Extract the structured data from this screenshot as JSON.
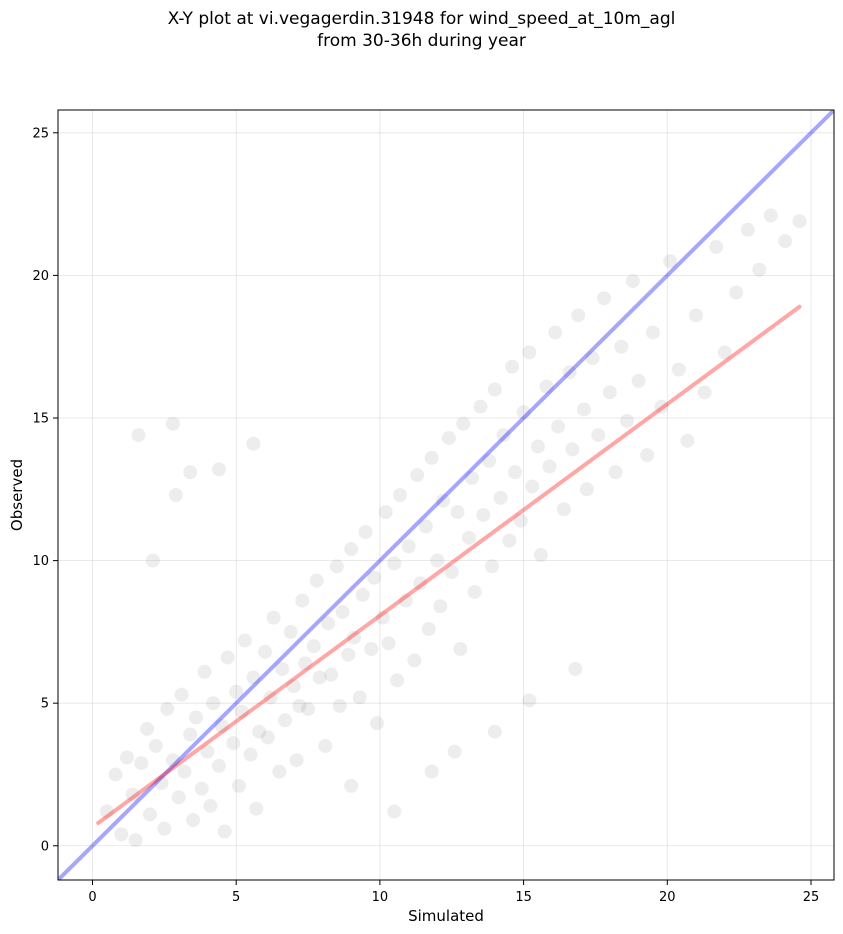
{
  "chart_data": {
    "type": "scatter",
    "title_line1": "X-Y plot at vi.vegagerdin.31948 for wind_speed_at_10m_agl",
    "title_line2": "from 30-36h during year",
    "xlabel": "Simulated",
    "ylabel": "Observed",
    "xlim": [
      -1.2,
      25.8
    ],
    "ylim": [
      -1.2,
      25.8
    ],
    "xticks": [
      0,
      5,
      10,
      15,
      20,
      25
    ],
    "yticks": [
      0,
      5,
      10,
      15,
      20,
      25
    ],
    "grid": true,
    "marker_color": "#000000",
    "marker_alpha": 0.07,
    "series": [
      {
        "type": "scatter",
        "points": [
          [
            0.5,
            1.2
          ],
          [
            0.8,
            2.5
          ],
          [
            1.0,
            0.4
          ],
          [
            1.2,
            3.1
          ],
          [
            1.4,
            1.8
          ],
          [
            1.5,
            0.2
          ],
          [
            1.7,
            2.9
          ],
          [
            1.9,
            4.1
          ],
          [
            2.0,
            1.1
          ],
          [
            2.2,
            3.5
          ],
          [
            2.4,
            2.2
          ],
          [
            2.5,
            0.6
          ],
          [
            2.6,
            4.8
          ],
          [
            2.8,
            3.0
          ],
          [
            3.0,
            1.7
          ],
          [
            3.1,
            5.3
          ],
          [
            3.2,
            2.6
          ],
          [
            3.4,
            3.9
          ],
          [
            3.5,
            0.9
          ],
          [
            3.6,
            4.5
          ],
          [
            3.8,
            2.0
          ],
          [
            3.9,
            6.1
          ],
          [
            4.0,
            3.3
          ],
          [
            4.1,
            1.4
          ],
          [
            4.2,
            5.0
          ],
          [
            4.4,
            2.8
          ],
          [
            4.5,
            4.2
          ],
          [
            4.6,
            0.5
          ],
          [
            4.7,
            6.6
          ],
          [
            4.9,
            3.6
          ],
          [
            5.0,
            5.4
          ],
          [
            5.1,
            2.1
          ],
          [
            5.2,
            4.7
          ],
          [
            5.3,
            7.2
          ],
          [
            5.5,
            3.2
          ],
          [
            5.6,
            5.9
          ],
          [
            5.7,
            1.3
          ],
          [
            5.8,
            4.0
          ],
          [
            6.0,
            6.8
          ],
          [
            6.1,
            3.8
          ],
          [
            6.2,
            5.2
          ],
          [
            6.3,
            8.0
          ],
          [
            6.5,
            2.6
          ],
          [
            6.6,
            6.2
          ],
          [
            6.7,
            4.4
          ],
          [
            6.9,
            7.5
          ],
          [
            7.0,
            5.6
          ],
          [
            7.1,
            3.0
          ],
          [
            7.3,
            8.6
          ],
          [
            7.4,
            6.4
          ],
          [
            7.5,
            4.8
          ],
          [
            7.7,
            7.0
          ],
          [
            7.8,
            9.3
          ],
          [
            7.9,
            5.9
          ],
          [
            8.1,
            3.5
          ],
          [
            8.2,
            7.8
          ],
          [
            8.3,
            6.0
          ],
          [
            8.5,
            9.8
          ],
          [
            8.6,
            4.9
          ],
          [
            8.7,
            8.2
          ],
          [
            8.9,
            6.7
          ],
          [
            9.0,
            10.4
          ],
          [
            9.1,
            7.3
          ],
          [
            9.3,
            5.2
          ],
          [
            9.4,
            8.8
          ],
          [
            9.5,
            11.0
          ],
          [
            9.7,
            6.9
          ],
          [
            9.8,
            9.4
          ],
          [
            9.9,
            4.3
          ],
          [
            10.1,
            8.0
          ],
          [
            10.2,
            11.7
          ],
          [
            10.3,
            7.1
          ],
          [
            10.5,
            9.9
          ],
          [
            10.6,
            5.8
          ],
          [
            10.7,
            12.3
          ],
          [
            10.9,
            8.6
          ],
          [
            11.0,
            10.5
          ],
          [
            11.2,
            6.5
          ],
          [
            11.3,
            13.0
          ],
          [
            11.4,
            9.2
          ],
          [
            11.6,
            11.2
          ],
          [
            11.7,
            7.6
          ],
          [
            11.8,
            13.6
          ],
          [
            12.0,
            10.0
          ],
          [
            12.1,
            8.4
          ],
          [
            12.2,
            12.1
          ],
          [
            12.4,
            14.3
          ],
          [
            12.5,
            9.6
          ],
          [
            12.7,
            11.7
          ],
          [
            12.8,
            6.9
          ],
          [
            12.9,
            14.8
          ],
          [
            13.1,
            10.8
          ],
          [
            13.2,
            12.9
          ],
          [
            13.3,
            8.9
          ],
          [
            13.5,
            15.4
          ],
          [
            13.6,
            11.6
          ],
          [
            13.8,
            13.5
          ],
          [
            13.9,
            9.8
          ],
          [
            14.0,
            16.0
          ],
          [
            14.2,
            12.2
          ],
          [
            14.3,
            14.4
          ],
          [
            14.5,
            10.7
          ],
          [
            14.6,
            16.8
          ],
          [
            14.7,
            13.1
          ],
          [
            14.9,
            11.4
          ],
          [
            15.0,
            15.2
          ],
          [
            15.2,
            17.3
          ],
          [
            15.3,
            12.6
          ],
          [
            15.5,
            14.0
          ],
          [
            15.6,
            10.2
          ],
          [
            15.8,
            16.1
          ],
          [
            15.9,
            13.3
          ],
          [
            16.1,
            18.0
          ],
          [
            16.2,
            14.7
          ],
          [
            16.4,
            11.8
          ],
          [
            16.6,
            16.6
          ],
          [
            16.7,
            13.9
          ],
          [
            16.9,
            18.6
          ],
          [
            17.1,
            15.3
          ],
          [
            17.2,
            12.5
          ],
          [
            17.4,
            17.1
          ],
          [
            17.6,
            14.4
          ],
          [
            17.8,
            19.2
          ],
          [
            18.0,
            15.9
          ],
          [
            18.2,
            13.1
          ],
          [
            18.4,
            17.5
          ],
          [
            18.6,
            14.9
          ],
          [
            18.8,
            19.8
          ],
          [
            19.0,
            16.3
          ],
          [
            19.3,
            13.7
          ],
          [
            19.5,
            18.0
          ],
          [
            19.8,
            15.4
          ],
          [
            20.1,
            20.5
          ],
          [
            20.4,
            16.7
          ],
          [
            20.7,
            14.2
          ],
          [
            21.0,
            18.6
          ],
          [
            21.3,
            15.9
          ],
          [
            21.7,
            21.0
          ],
          [
            22.0,
            17.3
          ],
          [
            22.4,
            19.4
          ],
          [
            22.8,
            21.6
          ],
          [
            23.2,
            20.2
          ],
          [
            23.6,
            22.1
          ],
          [
            24.1,
            21.2
          ],
          [
            24.6,
            21.9
          ],
          [
            2.1,
            10.0
          ],
          [
            2.9,
            12.3
          ],
          [
            3.4,
            13.1
          ],
          [
            4.4,
            13.2
          ],
          [
            5.6,
            14.1
          ],
          [
            1.6,
            14.4
          ],
          [
            2.8,
            14.8
          ],
          [
            7.2,
            4.9
          ],
          [
            9.0,
            2.1
          ],
          [
            10.5,
            1.2
          ],
          [
            11.8,
            2.6
          ],
          [
            12.6,
            3.3
          ],
          [
            14.0,
            4.0
          ],
          [
            15.2,
            5.1
          ],
          [
            16.8,
            6.2
          ]
        ]
      },
      {
        "type": "line",
        "name": "identity",
        "color": "#0000ff",
        "alpha": 0.35,
        "x": [
          -1.2,
          25.8
        ],
        "y": [
          -1.2,
          25.8
        ]
      },
      {
        "type": "line",
        "name": "fit",
        "color": "#ff0000",
        "alpha": 0.35,
        "x": [
          0.2,
          24.6
        ],
        "y": [
          0.8,
          18.9
        ]
      }
    ]
  }
}
